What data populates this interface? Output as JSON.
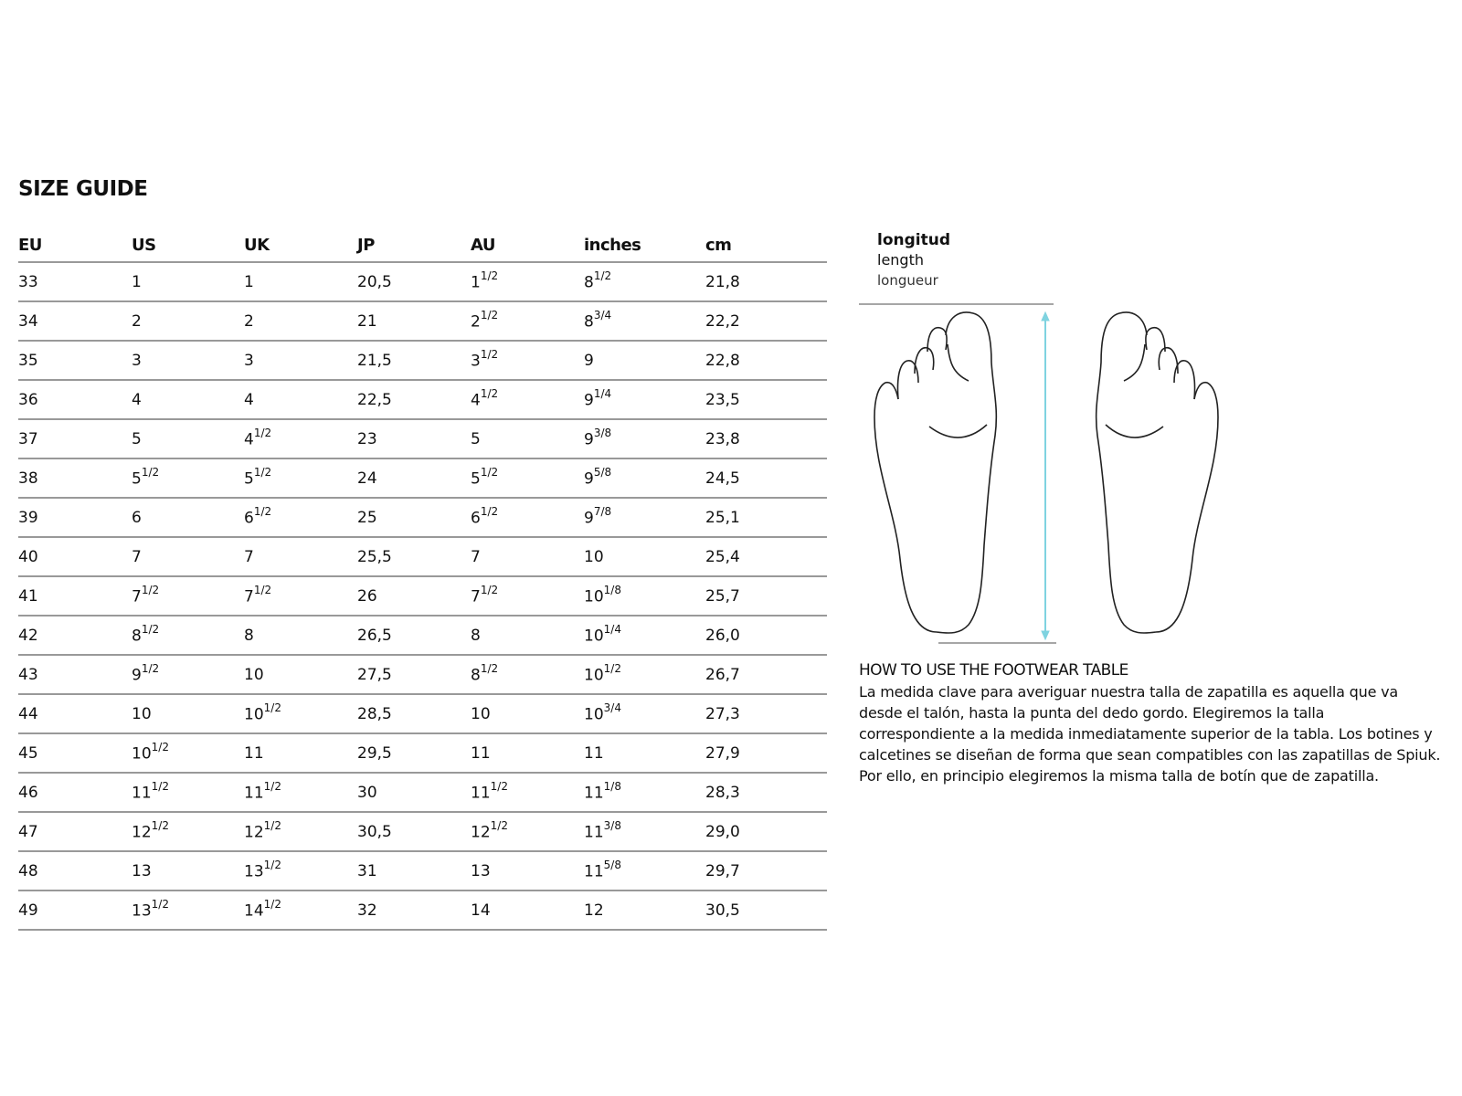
{
  "title": "SIZE GUIDE",
  "table": {
    "headers": [
      "EU",
      "US",
      "UK",
      "JP",
      "AU",
      "inches",
      "cm"
    ],
    "rows": [
      [
        "33",
        "1",
        "1",
        "20,5",
        {
          "v": "1",
          "sup": "1/2"
        },
        {
          "v": "8",
          "sup": "1/2"
        },
        "21,8"
      ],
      [
        "34",
        "2",
        "2",
        "21",
        {
          "v": "2",
          "sup": "1/2"
        },
        {
          "v": "8",
          "sup": "3/4"
        },
        "22,2"
      ],
      [
        "35",
        "3",
        "3",
        "21,5",
        {
          "v": "3",
          "sup": "1/2"
        },
        "9",
        "22,8"
      ],
      [
        "36",
        "4",
        "4",
        "22,5",
        {
          "v": "4",
          "sup": "1/2"
        },
        {
          "v": "9",
          "sup": "1/4"
        },
        "23,5"
      ],
      [
        "37",
        "5",
        {
          "v": "4",
          "sup": "1/2"
        },
        "23",
        "5",
        {
          "v": "9",
          "sup": "3/8"
        },
        "23,8"
      ],
      [
        "38",
        {
          "v": "5",
          "sup": "1/2"
        },
        {
          "v": "5",
          "sup": "1/2"
        },
        "24",
        {
          "v": "5",
          "sup": "1/2"
        },
        {
          "v": "9",
          "sup": "5/8"
        },
        "24,5"
      ],
      [
        "39",
        "6",
        {
          "v": "6",
          "sup": "1/2"
        },
        "25",
        {
          "v": "6",
          "sup": "1/2"
        },
        {
          "v": "9",
          "sup": "7/8"
        },
        "25,1"
      ],
      [
        "40",
        "7",
        "7",
        "25,5",
        "7",
        "10",
        "25,4"
      ],
      [
        "41",
        {
          "v": "7",
          "sup": "1/2"
        },
        {
          "v": "7",
          "sup": "1/2"
        },
        "26",
        {
          "v": "7",
          "sup": "1/2"
        },
        {
          "v": "10",
          "sup": "1/8"
        },
        "25,7"
      ],
      [
        "42",
        {
          "v": "8",
          "sup": "1/2"
        },
        "8",
        "26,5",
        "8",
        {
          "v": "10",
          "sup": "1/4"
        },
        "26,0"
      ],
      [
        "43",
        {
          "v": "9",
          "sup": "1/2"
        },
        "10",
        "27,5",
        {
          "v": "8",
          "sup": "1/2"
        },
        {
          "v": "10",
          "sup": "1/2"
        },
        "26,7"
      ],
      [
        "44",
        "10",
        {
          "v": "10",
          "sup": "1/2"
        },
        "28,5",
        "10",
        {
          "v": "10",
          "sup": "3/4"
        },
        "27,3"
      ],
      [
        "45",
        {
          "v": "10",
          "sup": "1/2"
        },
        "11",
        "29,5",
        "11",
        "11",
        "27,9"
      ],
      [
        "46",
        {
          "v": "11",
          "sup": "1/2"
        },
        {
          "v": "11",
          "sup": "1/2"
        },
        "30",
        {
          "v": "11",
          "sup": "1/2"
        },
        {
          "v": "11",
          "sup": "1/8"
        },
        "28,3"
      ],
      [
        "47",
        {
          "v": "12",
          "sup": "1/2"
        },
        {
          "v": "12",
          "sup": "1/2"
        },
        "30,5",
        {
          "v": "12",
          "sup": "1/2"
        },
        {
          "v": "11",
          "sup": "3/8"
        },
        "29,0"
      ],
      [
        "48",
        "13",
        {
          "v": "13",
          "sup": "1/2"
        },
        "31",
        "13",
        {
          "v": "11",
          "sup": "5/8"
        },
        "29,7"
      ],
      [
        "49",
        {
          "v": "13",
          "sup": "1/2"
        },
        {
          "v": "14",
          "sup": "1/2"
        },
        "32",
        "14",
        "12",
        "30,5"
      ]
    ]
  },
  "length_labels": {
    "es": "longitud",
    "en": "length",
    "fr": "longueur"
  },
  "arrow_color": "#7fd3e0",
  "howto": {
    "title": "HOW TO USE THE FOOTWEAR TABLE",
    "body": "La medida clave para averiguar nuestra talla de zapatilla es aquella que va desde el talón, hasta la punta del dedo gordo. Elegiremos la talla correspondiente a la medida inmediatamente superior de la tabla. Los botines y calcetines se diseñan de forma que sean compatibles con las zapatillas de Spiuk. Por ello, en principio elegiremos la misma talla de botín que de zapatilla."
  }
}
